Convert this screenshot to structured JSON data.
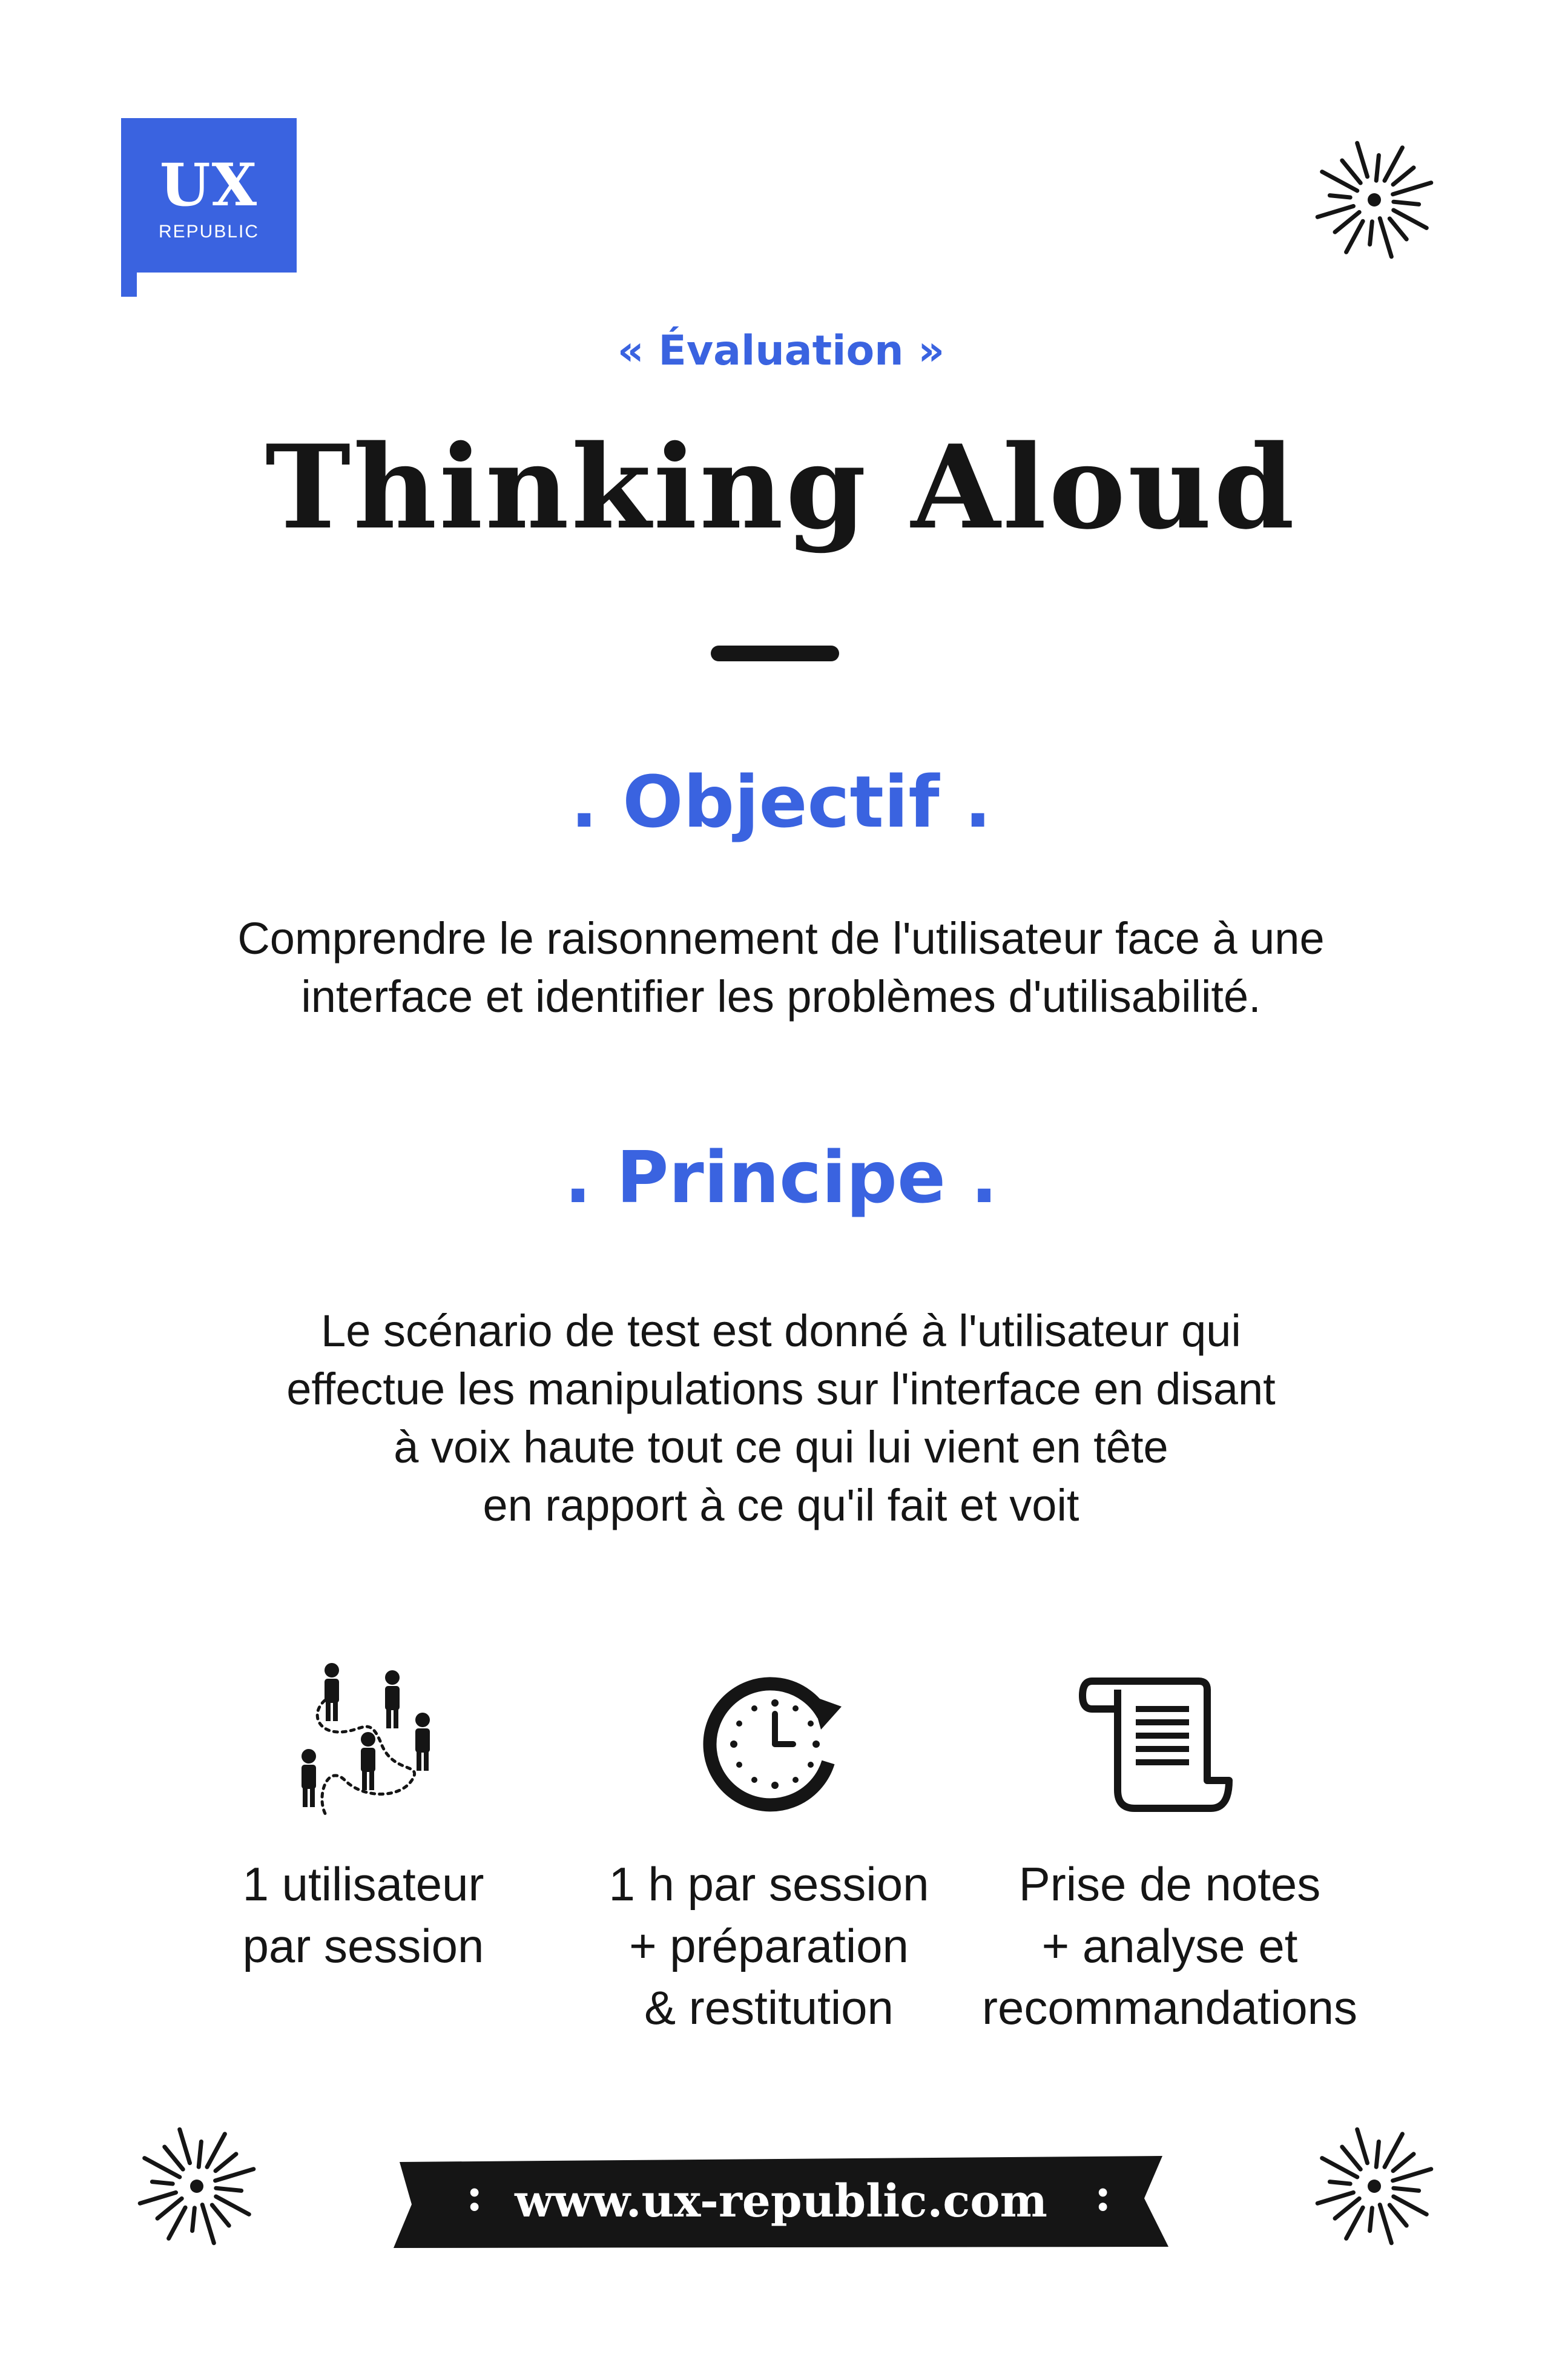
{
  "logo": {
    "primary": "UX",
    "secondary": "REPUBLIC"
  },
  "header": {
    "eyebrow": "« Évaluation »",
    "title": "Thinking Aloud"
  },
  "sections": {
    "objectif": {
      "heading": ". Objectif .",
      "lines": [
        "Comprendre le raisonnement de l'utilisateur face à une",
        "interface et identifier les problèmes d'utilisabilité."
      ]
    },
    "principe": {
      "heading": ". Principe .",
      "lines": [
        "Le scénario de test est donné à l'utilisateur qui",
        "effectue les manipulations sur l'interface en disant",
        "à voix haute tout ce qui lui vient en tête",
        "en rapport à ce qu'il fait et voit"
      ]
    }
  },
  "features": [
    {
      "icon": "people-journey-icon",
      "lines": [
        "1 utilisateur",
        "par session"
      ]
    },
    {
      "icon": "clock-refresh-icon",
      "lines": [
        "1 h par session",
        "+ préparation",
        "& restitution"
      ]
    },
    {
      "icon": "scroll-document-icon",
      "lines": [
        "Prise de notes",
        "+ analyse et",
        "recommandations"
      ]
    }
  ],
  "footer": {
    "url": "www.ux-republic.com",
    "left_mark": ":",
    "right_mark": ":"
  },
  "colors": {
    "accent": "#3a63e0",
    "ink": "#151515",
    "background": "#ffffff"
  },
  "decorations": {
    "icon": "sun-burst-icon",
    "count": 3
  }
}
